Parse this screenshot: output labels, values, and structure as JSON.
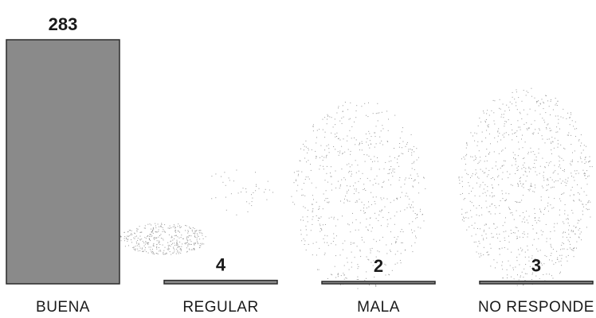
{
  "chart_data": {
    "type": "bar",
    "categories": [
      "BUENA",
      "REGULAR",
      "MALA",
      "NO RESPONDE"
    ],
    "values": [
      283,
      4,
      2,
      3
    ],
    "ylim": [
      0,
      283
    ],
    "grid": false,
    "legend": "none",
    "colors": {
      "bar": "#8a8a8a",
      "bar_outline": "#2b2b2b",
      "text": "#1a1a1a",
      "scan_noise": "#9a9a9a"
    }
  }
}
